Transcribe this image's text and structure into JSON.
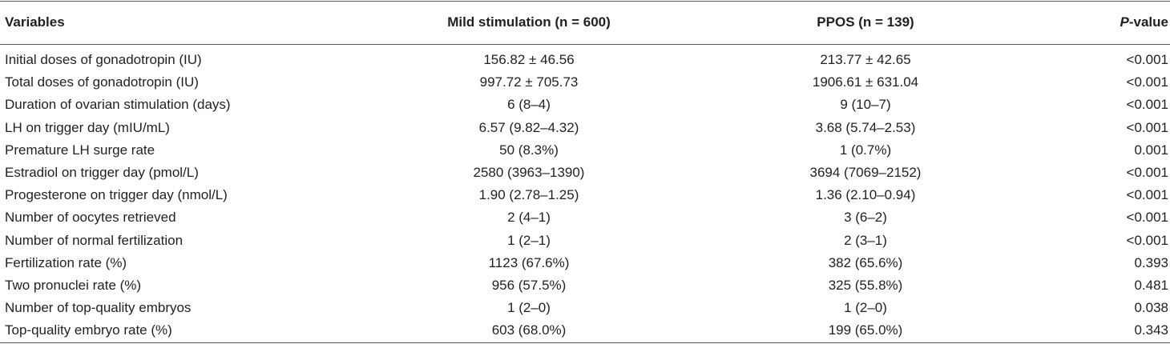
{
  "table": {
    "header": [
      "Variables",
      "Mild stimulation (n = 600)",
      "PPOS (n = 139)",
      [
        "P",
        "-value"
      ]
    ],
    "rows": [
      [
        "Initial doses of gonadotropin (IU)",
        "156.82 ± 46.56",
        "213.77 ± 42.65",
        "<0.001"
      ],
      [
        "Total doses of gonadotropin (IU)",
        "997.72 ± 705.73",
        "1906.61 ± 631.04",
        "<0.001"
      ],
      [
        "Duration of ovarian stimulation (days)",
        "6 (8–4)",
        "9 (10–7)",
        "<0.001"
      ],
      [
        "LH on trigger day (mIU/mL)",
        "6.57 (9.82–4.32)",
        "3.68 (5.74–2.53)",
        "<0.001"
      ],
      [
        "Premature LH surge rate",
        "50 (8.3%)",
        "1 (0.7%)",
        "0.001"
      ],
      [
        "Estradiol on trigger day (pmol/L)",
        "2580 (3963–1390)",
        "3694 (7069–2152)",
        "<0.001"
      ],
      [
        "Progesterone on trigger day (nmol/L)",
        "1.90 (2.78–1.25)",
        "1.36 (2.10–0.94)",
        "<0.001"
      ],
      [
        "Number of oocytes retrieved",
        "2 (4–1)",
        "3 (6–2)",
        "<0.001"
      ],
      [
        "Number of normal fertilization",
        "1 (2–1)",
        "2 (3–1)",
        "<0.001"
      ],
      [
        "Fertilization rate (%)",
        "1123 (67.6%)",
        "382 (65.6%)",
        "0.393"
      ],
      [
        "Two pronuclei rate (%)",
        "956 (57.5%)",
        "325 (55.8%)",
        "0.481"
      ],
      [
        "Number of top-quality embryos",
        "1 (2–0)",
        "1 (2–0)",
        "0.038"
      ],
      [
        "Top-quality embryo rate (%)",
        "603 (68.0%)",
        "199 (65.0%)",
        "0.343"
      ]
    ]
  }
}
